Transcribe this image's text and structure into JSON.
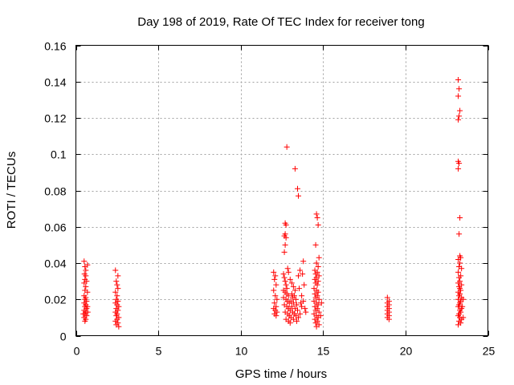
{
  "chart_data": {
    "type": "scatter",
    "title": "Day 198 of 2019, Rate Of TEC Index for receiver tong",
    "xlabel": "GPS time / hours",
    "ylabel": "ROTI / TECUs",
    "xlim": [
      0,
      25
    ],
    "ylim": [
      0,
      0.16
    ],
    "xticks": [
      0,
      5,
      10,
      15,
      20,
      25
    ],
    "yticks": [
      0,
      0.02,
      0.04,
      0.06,
      0.08,
      0.1,
      0.12,
      0.14,
      0.16
    ],
    "xtick_labels": [
      "0",
      "5",
      "10",
      "15",
      "20",
      "25"
    ],
    "ytick_labels": [
      "0",
      "0.02",
      "0.04",
      "0.06",
      "0.08",
      "0.1",
      "0.12",
      "0.14",
      "0.16"
    ],
    "grid": true,
    "marker": "+",
    "color": "#ff0000",
    "series": [
      {
        "name": "ROTI",
        "points": [
          [
            0.5,
            0.041
          ],
          [
            0.55,
            0.038
          ],
          [
            0.6,
            0.036
          ],
          [
            0.52,
            0.034
          ],
          [
            0.6,
            0.033
          ],
          [
            0.55,
            0.031
          ],
          [
            0.65,
            0.03
          ],
          [
            0.5,
            0.029
          ],
          [
            0.6,
            0.027
          ],
          [
            0.55,
            0.025
          ],
          [
            0.5,
            0.022
          ],
          [
            0.6,
            0.021
          ],
          [
            0.55,
            0.02
          ],
          [
            0.65,
            0.019
          ],
          [
            0.5,
            0.018
          ],
          [
            0.6,
            0.017
          ],
          [
            0.55,
            0.016
          ],
          [
            0.65,
            0.015
          ],
          [
            0.5,
            0.014
          ],
          [
            0.6,
            0.013
          ],
          [
            0.55,
            0.012
          ],
          [
            0.65,
            0.011
          ],
          [
            0.5,
            0.01
          ],
          [
            0.6,
            0.009
          ],
          [
            0.55,
            0.008
          ],
          [
            0.7,
            0.039
          ],
          [
            0.7,
            0.024
          ],
          [
            0.7,
            0.016
          ],
          [
            0.45,
            0.012
          ],
          [
            0.72,
            0.013
          ],
          [
            2.4,
            0.036
          ],
          [
            2.55,
            0.033
          ],
          [
            2.45,
            0.03
          ],
          [
            2.5,
            0.028
          ],
          [
            2.55,
            0.026
          ],
          [
            2.4,
            0.024
          ],
          [
            2.5,
            0.022
          ],
          [
            2.45,
            0.02
          ],
          [
            2.55,
            0.019
          ],
          [
            2.4,
            0.018
          ],
          [
            2.5,
            0.017
          ],
          [
            2.6,
            0.016
          ],
          [
            2.45,
            0.015
          ],
          [
            2.55,
            0.014
          ],
          [
            2.4,
            0.013
          ],
          [
            2.5,
            0.012
          ],
          [
            2.45,
            0.011
          ],
          [
            2.6,
            0.01
          ],
          [
            2.5,
            0.009
          ],
          [
            2.4,
            0.008
          ],
          [
            2.55,
            0.007
          ],
          [
            2.45,
            0.006
          ],
          [
            2.6,
            0.005
          ],
          [
            12.0,
            0.035
          ],
          [
            12.1,
            0.033
          ],
          [
            12.05,
            0.031
          ],
          [
            12.15,
            0.028
          ],
          [
            12.0,
            0.025
          ],
          [
            12.1,
            0.022
          ],
          [
            12.2,
            0.02
          ],
          [
            12.05,
            0.018
          ],
          [
            12.15,
            0.016
          ],
          [
            12.0,
            0.015
          ],
          [
            12.1,
            0.014
          ],
          [
            12.2,
            0.013
          ],
          [
            12.05,
            0.012
          ],
          [
            12.15,
            0.011
          ],
          [
            12.8,
            0.104
          ],
          [
            12.7,
            0.062
          ],
          [
            12.75,
            0.061
          ],
          [
            12.7,
            0.056
          ],
          [
            12.65,
            0.055
          ],
          [
            12.75,
            0.054
          ],
          [
            12.7,
            0.05
          ],
          [
            12.65,
            0.046
          ],
          [
            12.6,
            0.034
          ],
          [
            12.65,
            0.032
          ],
          [
            12.7,
            0.03
          ],
          [
            12.75,
            0.028
          ],
          [
            12.8,
            0.026
          ],
          [
            12.6,
            0.025
          ],
          [
            12.7,
            0.024
          ],
          [
            12.8,
            0.023
          ],
          [
            12.9,
            0.022
          ],
          [
            12.6,
            0.021
          ],
          [
            12.75,
            0.02
          ],
          [
            12.85,
            0.019
          ],
          [
            12.95,
            0.018
          ],
          [
            12.65,
            0.017
          ],
          [
            12.8,
            0.016
          ],
          [
            12.9,
            0.015
          ],
          [
            13.0,
            0.014
          ],
          [
            12.7,
            0.013
          ],
          [
            12.85,
            0.012
          ],
          [
            12.95,
            0.011
          ],
          [
            13.05,
            0.01
          ],
          [
            12.75,
            0.009
          ],
          [
            12.9,
            0.008
          ],
          [
            13.0,
            0.007
          ],
          [
            12.85,
            0.037
          ],
          [
            12.9,
            0.035
          ],
          [
            13.0,
            0.031
          ],
          [
            13.1,
            0.029
          ],
          [
            13.2,
            0.027
          ],
          [
            13.3,
            0.025
          ],
          [
            13.1,
            0.023
          ],
          [
            13.25,
            0.022
          ],
          [
            13.15,
            0.021
          ],
          [
            13.35,
            0.02
          ],
          [
            13.05,
            0.019
          ],
          [
            13.2,
            0.018
          ],
          [
            13.4,
            0.017
          ],
          [
            13.1,
            0.016
          ],
          [
            13.3,
            0.015
          ],
          [
            13.45,
            0.014
          ],
          [
            13.15,
            0.013
          ],
          [
            13.25,
            0.012
          ],
          [
            13.35,
            0.011
          ],
          [
            13.5,
            0.01
          ],
          [
            13.2,
            0.009
          ],
          [
            13.4,
            0.008
          ],
          [
            13.6,
            0.012
          ],
          [
            13.7,
            0.016
          ],
          [
            13.3,
            0.092
          ],
          [
            13.45,
            0.081
          ],
          [
            13.5,
            0.077
          ],
          [
            13.6,
            0.036
          ],
          [
            13.8,
            0.041
          ],
          [
            13.75,
            0.034
          ],
          [
            13.85,
            0.028
          ],
          [
            13.7,
            0.022
          ],
          [
            13.8,
            0.019
          ],
          [
            13.65,
            0.018
          ],
          [
            13.5,
            0.033
          ],
          [
            13.55,
            0.026
          ],
          [
            13.9,
            0.015
          ],
          [
            13.95,
            0.013
          ],
          [
            14.6,
            0.067
          ],
          [
            14.65,
            0.065
          ],
          [
            14.7,
            0.061
          ],
          [
            14.55,
            0.05
          ],
          [
            14.75,
            0.043
          ],
          [
            14.6,
            0.04
          ],
          [
            14.7,
            0.038
          ],
          [
            14.5,
            0.036
          ],
          [
            14.65,
            0.035
          ],
          [
            14.55,
            0.034
          ],
          [
            14.75,
            0.033
          ],
          [
            14.6,
            0.032
          ],
          [
            14.5,
            0.031
          ],
          [
            14.7,
            0.03
          ],
          [
            14.55,
            0.029
          ],
          [
            14.65,
            0.028
          ],
          [
            14.45,
            0.026
          ],
          [
            14.6,
            0.025
          ],
          [
            14.7,
            0.024
          ],
          [
            14.5,
            0.023
          ],
          [
            14.65,
            0.022
          ],
          [
            14.55,
            0.021
          ],
          [
            14.75,
            0.02
          ],
          [
            14.45,
            0.019
          ],
          [
            14.6,
            0.018
          ],
          [
            14.7,
            0.017
          ],
          [
            14.5,
            0.016
          ],
          [
            14.65,
            0.015
          ],
          [
            14.55,
            0.014
          ],
          [
            14.75,
            0.013
          ],
          [
            14.45,
            0.012
          ],
          [
            14.6,
            0.011
          ],
          [
            14.7,
            0.01
          ],
          [
            14.5,
            0.009
          ],
          [
            14.65,
            0.008
          ],
          [
            14.55,
            0.007
          ],
          [
            14.75,
            0.006
          ],
          [
            14.6,
            0.005
          ],
          [
            14.85,
            0.011
          ],
          [
            14.9,
            0.018
          ],
          [
            18.9,
            0.021
          ],
          [
            19.0,
            0.019
          ],
          [
            18.9,
            0.018
          ],
          [
            19.0,
            0.017
          ],
          [
            18.9,
            0.016
          ],
          [
            19.0,
            0.015
          ],
          [
            18.9,
            0.014
          ],
          [
            19.0,
            0.013
          ],
          [
            18.9,
            0.012
          ],
          [
            19.0,
            0.011
          ],
          [
            18.9,
            0.01
          ],
          [
            19.0,
            0.009
          ],
          [
            23.2,
            0.141
          ],
          [
            23.25,
            0.136
          ],
          [
            23.2,
            0.132
          ],
          [
            23.3,
            0.124
          ],
          [
            23.25,
            0.121
          ],
          [
            23.2,
            0.119
          ],
          [
            23.2,
            0.096
          ],
          [
            23.25,
            0.095
          ],
          [
            23.2,
            0.092
          ],
          [
            23.3,
            0.065
          ],
          [
            23.25,
            0.056
          ],
          [
            23.3,
            0.044
          ],
          [
            23.35,
            0.043
          ],
          [
            23.2,
            0.042
          ],
          [
            23.3,
            0.04
          ],
          [
            23.25,
            0.038
          ],
          [
            23.4,
            0.037
          ],
          [
            23.2,
            0.035
          ],
          [
            23.35,
            0.033
          ],
          [
            23.25,
            0.032
          ],
          [
            23.3,
            0.03
          ],
          [
            23.2,
            0.029
          ],
          [
            23.4,
            0.028
          ],
          [
            23.25,
            0.027
          ],
          [
            23.3,
            0.026
          ],
          [
            23.35,
            0.025
          ],
          [
            23.2,
            0.024
          ],
          [
            23.3,
            0.023
          ],
          [
            23.25,
            0.022
          ],
          [
            23.4,
            0.021
          ],
          [
            23.2,
            0.02
          ],
          [
            23.35,
            0.019
          ],
          [
            23.3,
            0.018
          ],
          [
            23.25,
            0.017
          ],
          [
            23.2,
            0.016
          ],
          [
            23.4,
            0.015
          ],
          [
            23.3,
            0.014
          ],
          [
            23.35,
            0.013
          ],
          [
            23.25,
            0.012
          ],
          [
            23.2,
            0.011
          ],
          [
            23.3,
            0.01
          ],
          [
            23.4,
            0.009
          ],
          [
            23.25,
            0.008
          ],
          [
            23.35,
            0.007
          ],
          [
            23.2,
            0.006
          ],
          [
            23.5,
            0.02
          ],
          [
            23.45,
            0.016
          ],
          [
            23.5,
            0.01
          ]
        ]
      }
    ]
  }
}
